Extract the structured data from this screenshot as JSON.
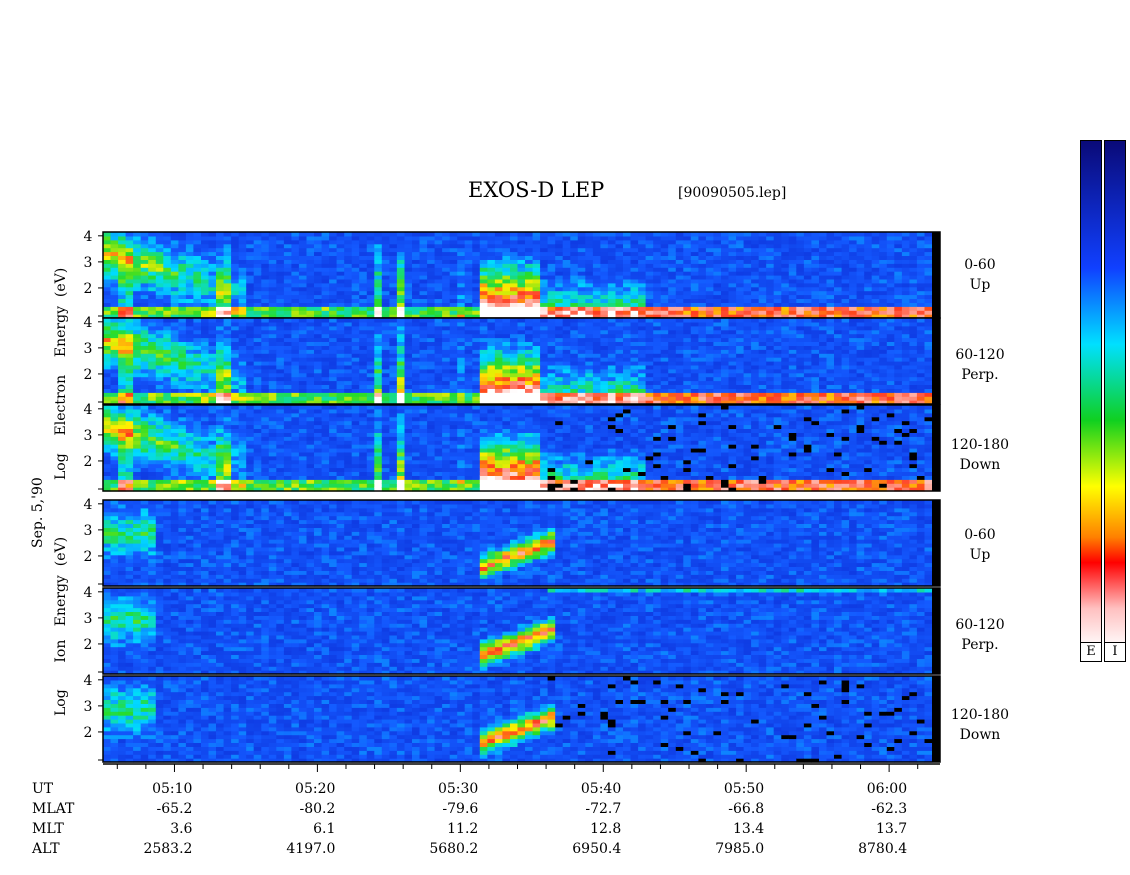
{
  "title": "EXOS-D LEP",
  "filename": "[90090505.lep]",
  "date_label": "Sep. 5,'90",
  "electron_ylabel": [
    "Log",
    "Electron",
    "Energy",
    "(eV)"
  ],
  "ion_ylabel": [
    "Log",
    "Ion",
    "Energy",
    "(eV)"
  ],
  "panels": [
    {
      "species": "electron",
      "range": "0-60",
      "dir": "Up"
    },
    {
      "species": "electron",
      "range": "60-120",
      "dir": "Perp."
    },
    {
      "species": "electron",
      "range": "120-180",
      "dir": "Down"
    },
    {
      "species": "ion",
      "range": "0-60",
      "dir": "Up"
    },
    {
      "species": "ion",
      "range": "60-120",
      "dir": "Perp."
    },
    {
      "species": "ion",
      "range": "120-180",
      "dir": "Down"
    }
  ],
  "colorbar_labels": [
    "E",
    "I"
  ],
  "colors": {
    "background": "#0a1ec8",
    "colorbar_top": "#0a0a78",
    "colorbar_bottom": "#ffffff"
  },
  "chart_data": {
    "type": "heatmap",
    "title": "EXOS-D LEP",
    "ylabel": "Log Energy (eV)",
    "y_ticks": [
      "2",
      "3",
      "4"
    ],
    "x_ticks": [
      "05:10",
      "05:20",
      "05:30",
      "05:40",
      "05:50",
      "06:00"
    ],
    "x_range_minutes": [
      5.0,
      63.0
    ],
    "ephemeris": {
      "rows": [
        "UT",
        "MLAT",
        "MLT",
        "ALT"
      ],
      "UT": [
        "05:10",
        "05:20",
        "05:30",
        "05:40",
        "05:50",
        "06:00"
      ],
      "MLAT": [
        "-65.2",
        "-80.2",
        "-79.6",
        "-72.7",
        "-66.8",
        "-62.3"
      ],
      "MLT": [
        "3.6",
        "6.1",
        "11.2",
        "12.8",
        "13.4",
        "13.7"
      ],
      "ALT": [
        "2583.2",
        "4197.0",
        "5680.2",
        "6950.4",
        "7985.0",
        "8780.4"
      ]
    }
  }
}
